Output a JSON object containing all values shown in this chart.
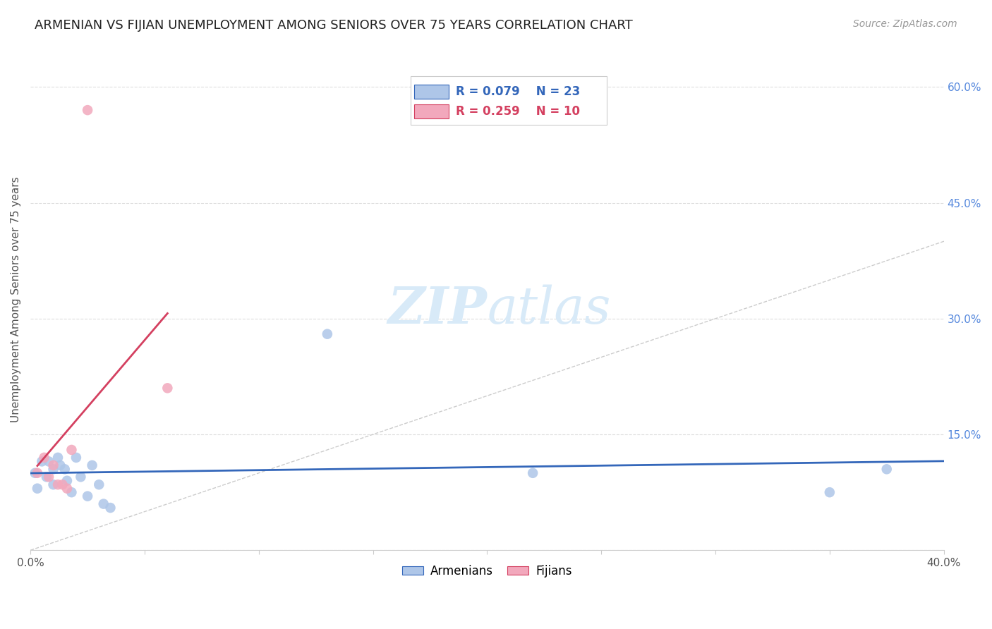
{
  "title": "ARMENIAN VS FIJIAN UNEMPLOYMENT AMONG SENIORS OVER 75 YEARS CORRELATION CHART",
  "source": "Source: ZipAtlas.com",
  "ylabel": "Unemployment Among Seniors over 75 years",
  "xlim": [
    0.0,
    0.4
  ],
  "ylim": [
    0.0,
    0.65
  ],
  "xticks": [
    0.0,
    0.05,
    0.1,
    0.15,
    0.2,
    0.25,
    0.3,
    0.35,
    0.4
  ],
  "xticklabels": [
    "0.0%",
    "",
    "",
    "",
    "",
    "",
    "",
    "",
    "40.0%"
  ],
  "yticks": [
    0.0,
    0.15,
    0.3,
    0.45,
    0.6
  ],
  "yticklabels": [
    "",
    "15.0%",
    "30.0%",
    "45.0%",
    "60.0%"
  ],
  "armenian_x": [
    0.002,
    0.003,
    0.005,
    0.007,
    0.008,
    0.01,
    0.01,
    0.012,
    0.013,
    0.015,
    0.016,
    0.018,
    0.02,
    0.022,
    0.025,
    0.027,
    0.03,
    0.032,
    0.035,
    0.13,
    0.22,
    0.35,
    0.375
  ],
  "armenian_y": [
    0.1,
    0.08,
    0.115,
    0.095,
    0.115,
    0.105,
    0.085,
    0.12,
    0.11,
    0.105,
    0.09,
    0.075,
    0.12,
    0.095,
    0.07,
    0.11,
    0.085,
    0.06,
    0.055,
    0.28,
    0.1,
    0.075,
    0.105
  ],
  "fijian_x": [
    0.003,
    0.006,
    0.008,
    0.01,
    0.012,
    0.014,
    0.016,
    0.018,
    0.06,
    0.025
  ],
  "fijian_y": [
    0.1,
    0.12,
    0.095,
    0.11,
    0.085,
    0.085,
    0.08,
    0.13,
    0.21,
    0.57
  ],
  "armenian_R": 0.079,
  "armenian_N": 23,
  "fijian_R": 0.259,
  "fijian_N": 10,
  "armenian_color": "#aec6e8",
  "fijian_color": "#f2a8bc",
  "armenian_line_color": "#3467ba",
  "fijian_line_color": "#d44060",
  "diagonal_color": "#cccccc",
  "background_color": "#ffffff",
  "grid_color": "#dddddd",
  "tick_color_right": "#5588dd",
  "watermark_color": "#d8eaf8",
  "title_fontsize": 13,
  "label_fontsize": 11,
  "tick_fontsize": 11,
  "legend_fontsize": 12,
  "source_fontsize": 10
}
